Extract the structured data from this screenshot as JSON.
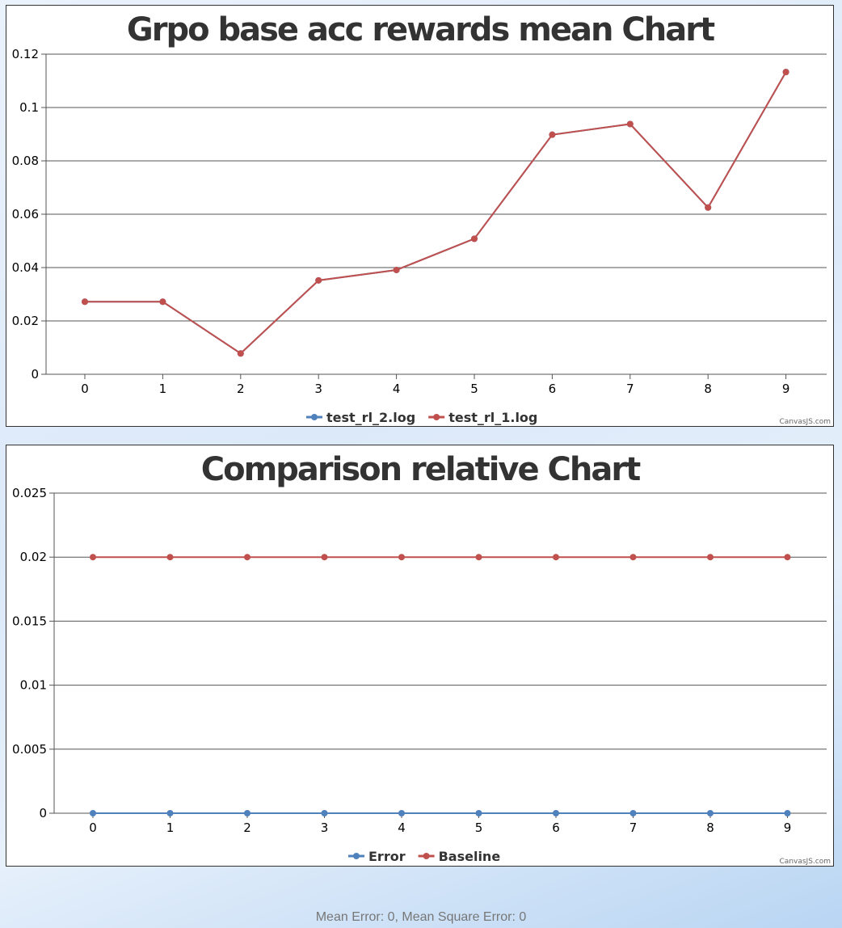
{
  "chart_data": [
    {
      "type": "line",
      "title": "Grpo base acc rewards mean Chart",
      "x": [
        0,
        1,
        2,
        3,
        4,
        5,
        6,
        7,
        8,
        9
      ],
      "ylim": [
        0,
        0.12
      ],
      "yticks": [
        "0",
        "0.02",
        "0.04",
        "0.06",
        "0.08",
        "0.1",
        "0.12"
      ],
      "grid": true,
      "legend_position": "bottom-center",
      "series": [
        {
          "name": "test_rl_2.log",
          "color": "#4f81bc",
          "values": [
            0.0272,
            0.0272,
            0.0078,
            0.0352,
            0.0391,
            0.0508,
            0.0898,
            0.0938,
            0.0625,
            0.1133
          ]
        },
        {
          "name": "test_rl_1.log",
          "color": "#c0504e",
          "values": [
            0.0272,
            0.0272,
            0.0078,
            0.0352,
            0.0391,
            0.0508,
            0.0898,
            0.0938,
            0.0625,
            0.1133
          ]
        }
      ],
      "credit": "CanvasJS.com"
    },
    {
      "type": "line",
      "title": "Comparison relative Chart",
      "x": [
        0,
        1,
        2,
        3,
        4,
        5,
        6,
        7,
        8,
        9
      ],
      "ylim": [
        0,
        0.025
      ],
      "yticks": [
        "0",
        "0.005",
        "0.01",
        "0.015",
        "0.02",
        "0.025"
      ],
      "grid": true,
      "legend_position": "bottom-center",
      "series": [
        {
          "name": "Error",
          "color": "#4f81bc",
          "values": [
            0,
            0,
            0,
            0,
            0,
            0,
            0,
            0,
            0,
            0
          ]
        },
        {
          "name": "Baseline",
          "color": "#c0504e",
          "values": [
            0.02,
            0.02,
            0.02,
            0.02,
            0.02,
            0.02,
            0.02,
            0.02,
            0.02,
            0.02
          ]
        }
      ],
      "credit": "CanvasJS.com"
    }
  ],
  "footer": {
    "text": "Mean Error: 0, Mean Square Error: 0"
  }
}
